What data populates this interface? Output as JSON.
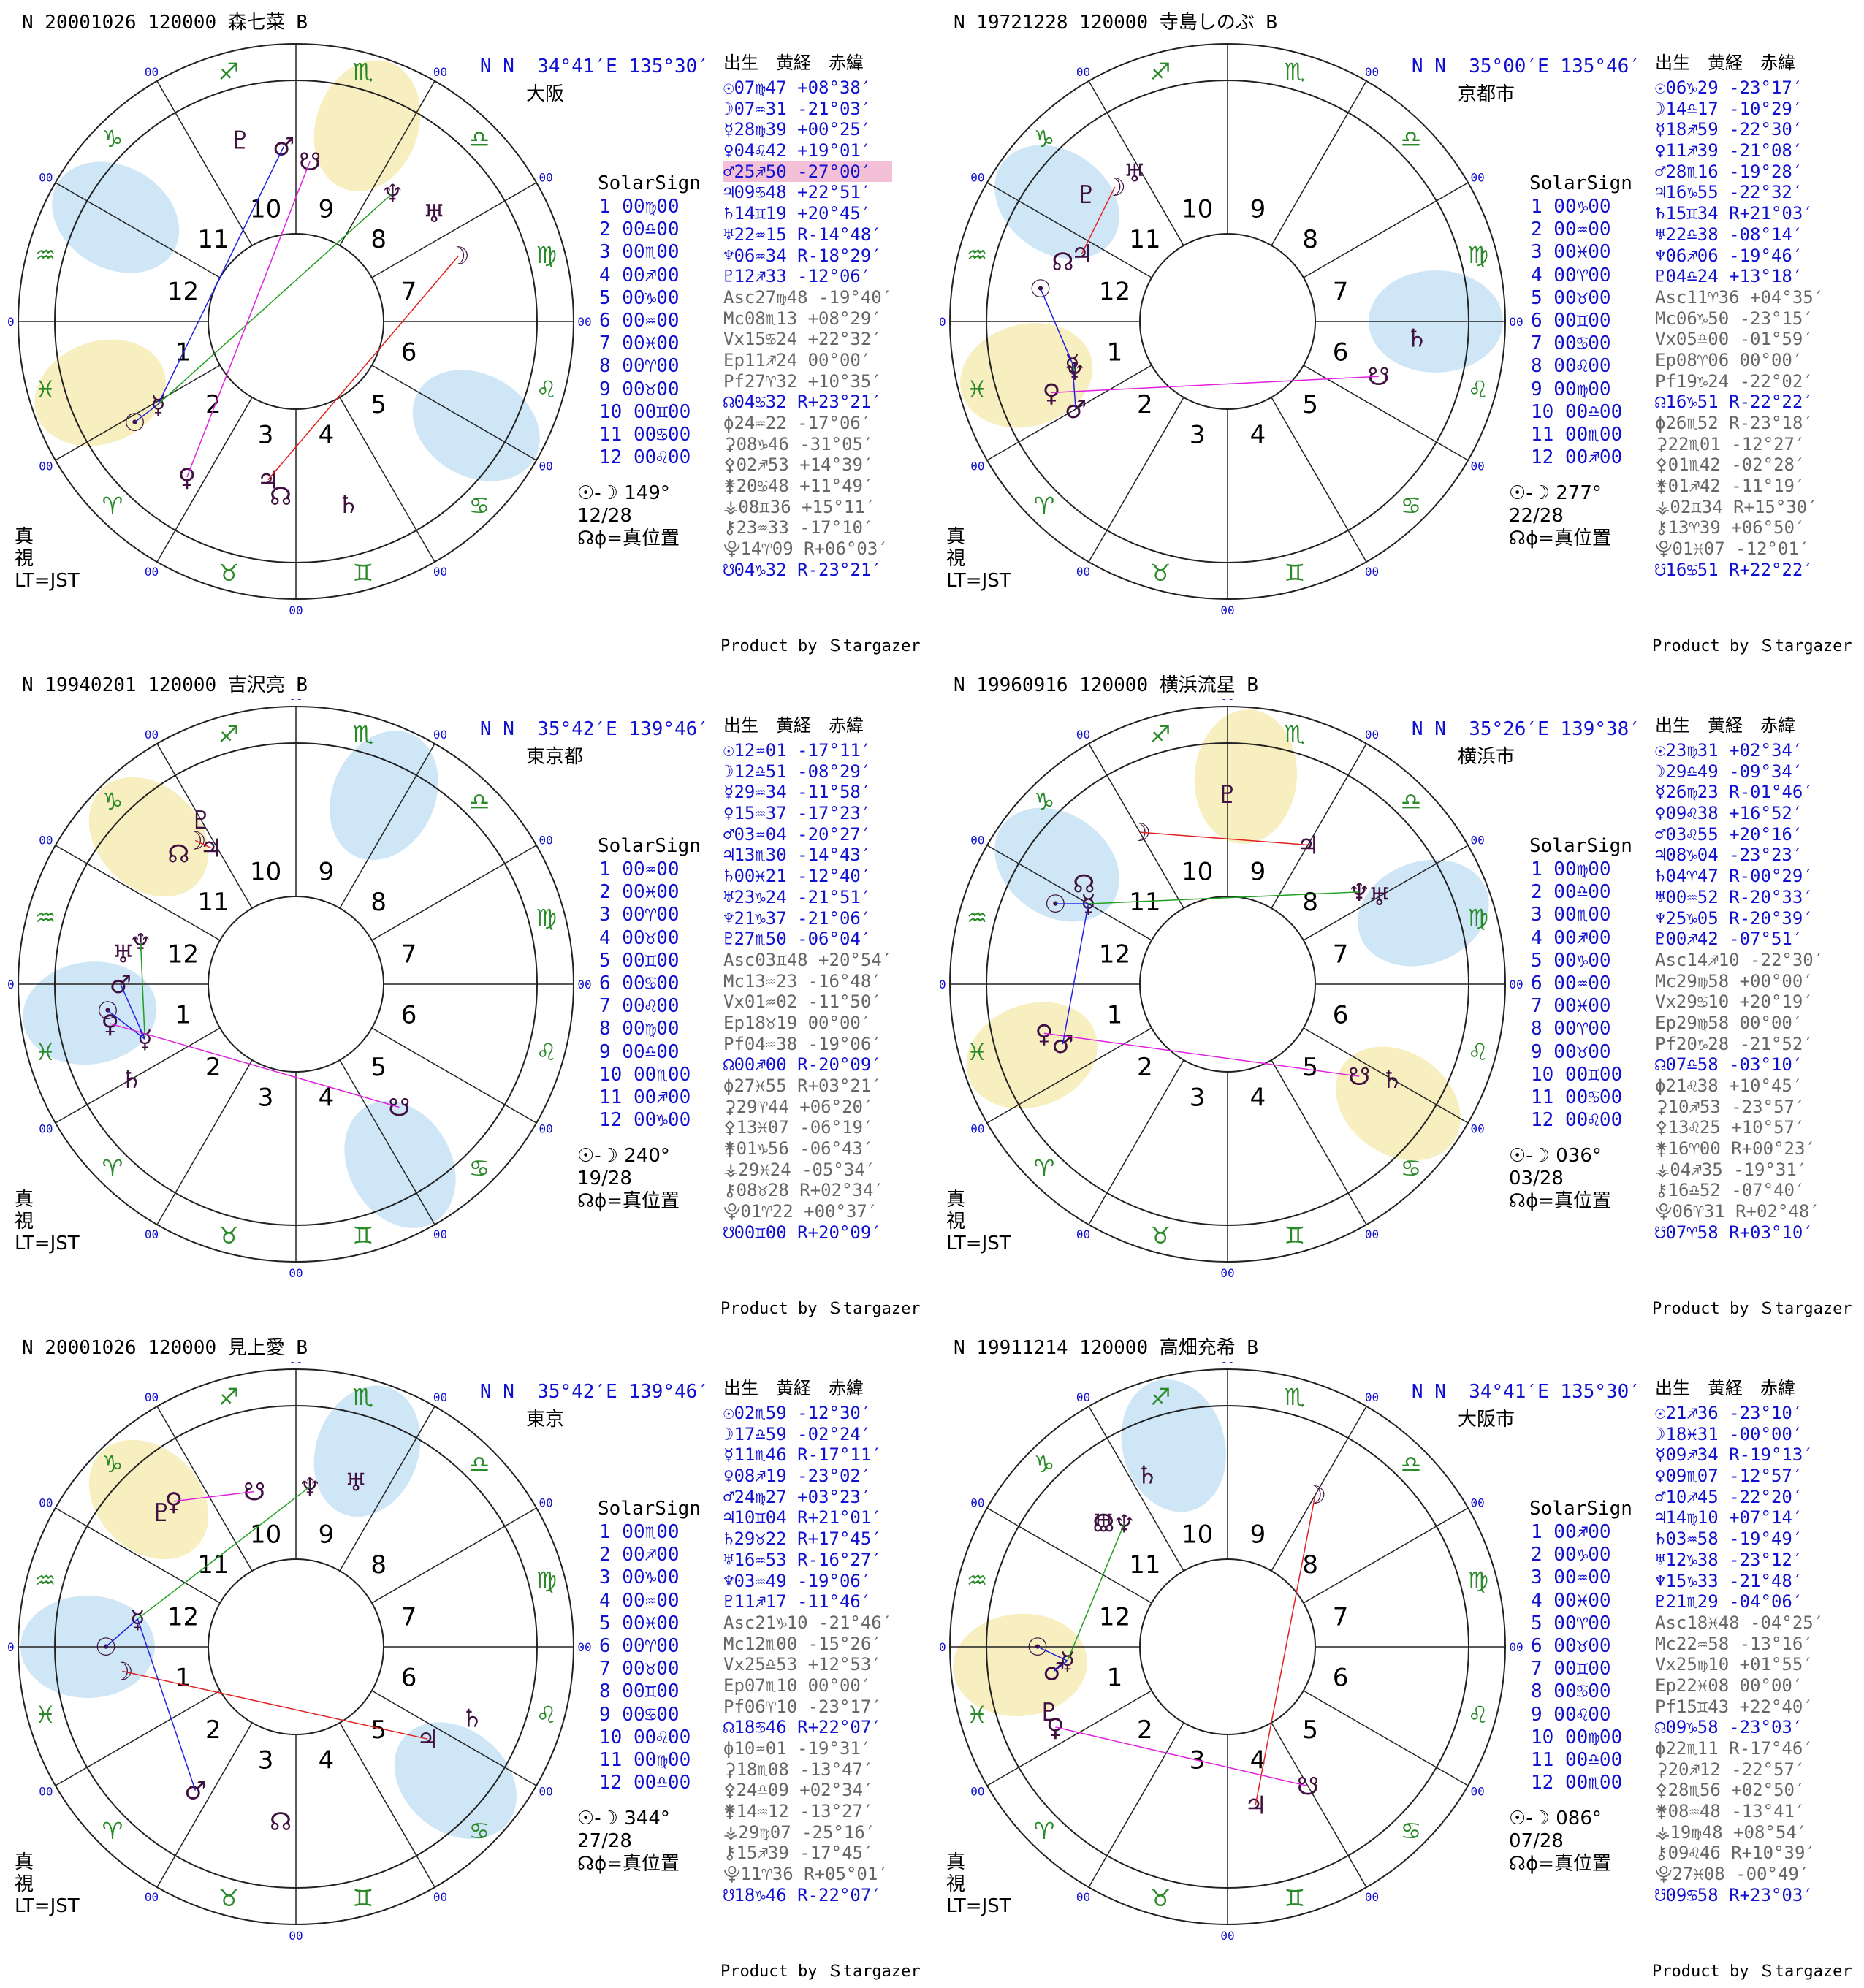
{
  "labels": {
    "header": "出生　黄経　赤緯",
    "solar": "SolarSign",
    "product": "Product by Ｓtargazer",
    "true": "真\n視\nLT=JST",
    "nodes": "☊ϕ=真位置"
  },
  "signs_order": [
    "♈",
    "♉",
    "♊",
    "♋",
    "♌",
    "♍",
    "♎",
    "♏",
    "♐",
    "♑",
    "♒",
    "♓"
  ],
  "panels": [
    {
      "title": "N 20001026 120000 森七菜 B",
      "loc": "N N  34°41′E 135°30′",
      "city": "大阪",
      "asc_deg": 147.7,
      "aspect_line1": "☉-☽ 149°",
      "aspect_line2": "12/28",
      "houses": [
        "1 00♍00",
        "2 00♎00",
        "3 00♏00",
        "4 00♐00",
        "5 00♑00",
        "6 00♒00",
        "7 00♓00",
        "8 00♈00",
        "9 00♉00",
        "10 00♊00",
        "11 00♋00",
        "12 00♌00"
      ],
      "rows": [
        "☉07♍47 +08°38′",
        "☽07♒31 -21°03′",
        "☿28♍39 +00°25′",
        "♀04♌42 +19°01′",
        "♂25♐50 -27°00′",
        "♃09♋48 +22°51′",
        "♄14♊19 +20°45′",
        "♅22♒15 R-14°48′",
        "♆06♒34 R-18°29′",
        "♇12♐33 -12°06′",
        "Asc27♍48 -19°40′",
        "Mc08♏13 +08°29′",
        "Vx15♋24 +22°32′",
        "Ep11♐24 00°00′",
        "Pf27♈32 +10°35′",
        "☊04♋32 R+23°21′",
        "ϕ24♒22 -17°06′",
        "⚳08♑46 -31°05′",
        "⚴02♐53 +14°39′",
        "⚵20♋48 +11°49′",
        "⚶08♊36 +15°11′",
        "⚷23♒33 -17°10′",
        "⯓14♈09 R+06°03′",
        "☋04♑32 R-23°21′"
      ],
      "hl_row": 4,
      "bubbles": [
        {
          "a": 210,
          "c": "#cfe6f7"
        },
        {
          "a": 30,
          "c": "#cfe6f7"
        },
        {
          "a": 160,
          "c": "#f7efc0"
        },
        {
          "a": 290,
          "c": "#f7efc0"
        }
      ],
      "planets": [
        [
          "☉",
          148
        ],
        [
          "☽",
          338
        ],
        [
          "☿",
          149
        ],
        [
          "♀",
          125
        ],
        [
          "♂",
          266
        ],
        [
          "♃",
          100
        ],
        [
          "♄",
          74
        ],
        [
          "♅",
          322
        ],
        [
          "♆",
          307
        ],
        [
          "♇",
          253
        ],
        [
          "☊",
          95
        ],
        [
          "☋",
          275
        ]
      ]
    },
    {
      "title": "N 19721228 120000 寺島しのぶ B",
      "loc": "N N  35°00′E 135°46′",
      "city": "京都市",
      "asc_deg": -150,
      "aspect_line1": "☉-☽ 277°",
      "aspect_line2": "22/28",
      "houses": [
        "1 00♑00",
        "2 00♒00",
        "3 00♓00",
        "4 00♈00",
        "5 00♉00",
        "6 00♊00",
        "7 00♋00",
        "8 00♌00",
        "9 00♍00",
        "10 00♎00",
        "11 00♏00",
        "12 00♐00"
      ],
      "rows": [
        "☉06♑29 -23°17′",
        "☽14♎17 -10°29′",
        "☿18♐59 -22°30′",
        "♀11♐39 -21°08′",
        "♂28♏16 -19°28′",
        "♃16♑55 -22°32′",
        "♄15♊34 R+21°03′",
        "♅22♎38 -08°14′",
        "♆06♐06 -19°46′",
        "♇04♎24 +13°18′",
        "Asc11♈36 +04°35′",
        "Mc06♑50 -23°15′",
        "Vx05♎00 -01°59′",
        "Ep08♈06 00°00′",
        "Pf19♑24 -22°02′",
        "☊16♑51 R-22°22′",
        "ϕ26♏52 R-23°18′",
        "⚳22♏01 -12°27′",
        "⚴01♏42 -02°28′",
        "⚵01♐42 -11°19′",
        "⚶02♊34 R+15°30′",
        "⚷13♈39 +06°50′",
        "⯓01♓07 -12°01′",
        "☋16♋51 R+22°22′"
      ],
      "hl_row": -1,
      "bubbles": [
        {
          "a": 215,
          "c": "#cfe6f7"
        },
        {
          "a": 0,
          "c": "#cfe6f7"
        },
        {
          "a": 165,
          "c": "#f7efc0"
        }
      ],
      "planets": [
        [
          "☉",
          190
        ],
        [
          "☽",
          230
        ],
        [
          "☿",
          165
        ],
        [
          "♀",
          158
        ],
        [
          "♂",
          150
        ],
        [
          "♃",
          205
        ],
        [
          "♄",
          5
        ],
        [
          "♅",
          238
        ],
        [
          "♆",
          162
        ],
        [
          "♇",
          222
        ],
        [
          "☊",
          200
        ],
        [
          "☋",
          20
        ]
      ]
    },
    {
      "title": "N 19940201 120000 吉沢亮 B",
      "loc": "N N  35°42′E 139°46′",
      "city": "東京都",
      "asc_deg": -150,
      "aspect_line1": "☉-☽ 240°",
      "aspect_line2": "19/28",
      "houses": [
        "1 00♒00",
        "2 00♓00",
        "3 00♈00",
        "4 00♉00",
        "5 00♊00",
        "6 00♋00",
        "7 00♌00",
        "8 00♍00",
        "9 00♎00",
        "10 00♏00",
        "11 00♐00",
        "12 00♑00"
      ],
      "rows": [
        "☉12♒01 -17°11′",
        "☽12♎51 -08°29′",
        "☿29♒34 -11°58′",
        "♀15♒37 -17°23′",
        "♂03♒04 -20°27′",
        "♃13♏30 -14°43′",
        "♄00♓21 -12°40′",
        "♅23♑24 -21°51′",
        "♆21♑37 -21°06′",
        "♇27♏50 -06°04′",
        "Asc03♊48 +20°54′",
        "Mc13♒23 -16°48′",
        "Vx01♒02 -11°50′",
        "Ep18♉19 00°00′",
        "Pf04♒38 -19°06′",
        "☊00♐00 R-20°09′",
        "ϕ27♓55 R+03°21′",
        "⚳29♈44 +06°20′",
        "⚴13♓07 -06°19′",
        "⚵01♑56 -06°43′",
        "⚶29♓24 -05°34′",
        "⚷08♉28 R+02°34′",
        "⯓01♈22 +00°37′",
        "☋00♊00 R+20°09′"
      ],
      "hl_row": -1,
      "bubbles": [
        {
          "a": 225,
          "c": "#f7efc0"
        },
        {
          "a": 295,
          "c": "#cfe6f7"
        },
        {
          "a": 60,
          "c": "#cfe6f7"
        },
        {
          "a": 172,
          "c": "#cfe6f7"
        }
      ],
      "planets": [
        [
          "☉",
          172
        ],
        [
          "☽",
          235
        ],
        [
          "☿",
          160
        ],
        [
          "♀",
          168
        ],
        [
          "♂",
          180
        ],
        [
          "♃",
          238
        ],
        [
          "♄",
          150
        ],
        [
          "♅",
          190
        ],
        [
          "♆",
          195
        ],
        [
          "♇",
          240
        ],
        [
          "☊",
          228
        ],
        [
          "☋",
          50
        ]
      ]
    },
    {
      "title": "N 19960916 120000 横浜流星 B",
      "loc": "N N  35°26′E 139°38′",
      "city": "横浜市",
      "asc_deg": -150,
      "aspect_line1": "☉-☽ 036°",
      "aspect_line2": "03/28",
      "houses": [
        "1 00♍00",
        "2 00♎00",
        "3 00♏00",
        "4 00♐00",
        "5 00♑00",
        "6 00♒00",
        "7 00♓00",
        "8 00♈00",
        "9 00♉00",
        "10 00♊00",
        "11 00♋00",
        "12 00♌00"
      ],
      "rows": [
        "☉23♍31 +02°34′",
        "☽29♎49 -09°34′",
        "☿26♍23 R-01°46′",
        "♀09♌38 +16°52′",
        "♂03♌55 +20°16′",
        "♃08♑04 -23°23′",
        "♄04♈47 R-00°29′",
        "♅00♒52 R-20°33′",
        "♆25♑05 R-20°39′",
        "♇00♐42 -07°51′",
        "Asc14♐10 -22°30′",
        "Mc29♍58 +00°00′",
        "Vx29♋10 +20°19′",
        "Ep29♍58 00°00′",
        "Pf20♑28 -21°52′",
        "☊07♎58 -03°10′",
        "ϕ21♌38 +10°45′",
        "⚳10♐53 -23°57′",
        "⚴13♌25 +10°57′",
        "⚵16♈00 R+00°23′",
        "⚶04♐35 -19°31′",
        "⚷16♎52 -07°40′",
        "⯓06♈31 R+02°48′",
        "☋07♈58 R+03°10′"
      ],
      "hl_row": -1,
      "bubbles": [
        {
          "a": 160,
          "c": "#f7efc0"
        },
        {
          "a": 35,
          "c": "#f7efc0"
        },
        {
          "a": 215,
          "c": "#cfe6f7"
        },
        {
          "a": 275,
          "c": "#f7efc0"
        },
        {
          "a": 340,
          "c": "#cfe6f7"
        }
      ],
      "planets": [
        [
          "☉",
          205
        ],
        [
          "☽",
          240
        ],
        [
          "☿",
          210
        ],
        [
          "♀",
          165
        ],
        [
          "♂",
          160
        ],
        [
          "♃",
          300
        ],
        [
          "♄",
          30
        ],
        [
          "♅",
          330
        ],
        [
          "♆",
          325
        ],
        [
          "♇",
          270
        ],
        [
          "☊",
          215
        ],
        [
          "☋",
          35
        ]
      ]
    },
    {
      "title": "N 20001026 120000 見上愛 B",
      "loc": "N N  35°42′E 139°46′",
      "city": "東京",
      "asc_deg": -150,
      "aspect_line1": "☉-☽ 344°",
      "aspect_line2": "27/28",
      "houses": [
        "1 00♏00",
        "2 00♐00",
        "3 00♑00",
        "4 00♒00",
        "5 00♓00",
        "6 00♈00",
        "7 00♉00",
        "8 00♊00",
        "9 00♋00",
        "10 00♌00",
        "11 00♍00",
        "12 00♎00"
      ],
      "rows": [
        "☉02♏59 -12°30′",
        "☽17♎59 -02°24′",
        "☿11♏46 R-17°11′",
        "♀08♐19 -23°02′",
        "♂24♍27 +03°23′",
        "♃10♊04 R+21°01′",
        "♄29♉22 R+17°45′",
        "♅16♒53 R-16°27′",
        "♆03♒49 -19°06′",
        "♇11♐17 -11°46′",
        "Asc21♑10 -21°46′",
        "Mc12♏00 -15°26′",
        "Vx25♎53 +12°53′",
        "Ep07♏10 00°00′",
        "Pf06♈10 -23°17′",
        "☊18♋46 R+22°07′",
        "ϕ10♒01 -19°31′",
        "⚳18♏08 -13°47′",
        "⚴24♎09 +02°34′",
        "⚵14♒12 -13°27′",
        "⚶29♍07 -25°16′",
        "⚷15♐39 -17°45′",
        "⯓11♈36 R+05°01′",
        "☋18♑46 R-22°07′"
      ],
      "hl_row": -1,
      "bubbles": [
        {
          "a": 40,
          "c": "#cfe6f7"
        },
        {
          "a": 180,
          "c": "#cfe6f7"
        },
        {
          "a": 225,
          "c": "#f7efc0"
        },
        {
          "a": 290,
          "c": "#cfe6f7"
        }
      ],
      "planets": [
        [
          "☉",
          180
        ],
        [
          "☽",
          172
        ],
        [
          "☿",
          190
        ],
        [
          "♀",
          230
        ],
        [
          "♂",
          125
        ],
        [
          "♃",
          35
        ],
        [
          "♄",
          22
        ],
        [
          "♅",
          290
        ],
        [
          "♆",
          275
        ],
        [
          "♇",
          225
        ],
        [
          "☊",
          95
        ],
        [
          "☋",
          255
        ]
      ]
    },
    {
      "title": "N 19911214 120000 高畑充希 B",
      "loc": "N N  34°41′E 135°30′",
      "city": "大阪市",
      "asc_deg": -150,
      "aspect_line1": "☉-☽ 086°",
      "aspect_line2": "07/28",
      "houses": [
        "1 00♐00",
        "2 00♑00",
        "3 00♒00",
        "4 00♓00",
        "5 00♈00",
        "6 00♉00",
        "7 00♊00",
        "8 00♋00",
        "9 00♌00",
        "10 00♍00",
        "11 00♎00",
        "12 00♏00"
      ],
      "rows": [
        "☉21♐36 -23°10′",
        "☽18♓31 -00°00′",
        "☿09♐34 R-19°13′",
        "♀09♏07 -12°57′",
        "♂10♐45 -22°20′",
        "♃14♍10 +07°14′",
        "♄03♒58 -19°49′",
        "♅12♑38 -23°12′",
        "♆15♑33 -21°48′",
        "♇21♏29 -04°06′",
        "Asc18♓48 -04°25′",
        "Mc22♒58 -13°16′",
        "Vx25♍10 +01°55′",
        "Ep22♓08 00°00′",
        "Pf15♊43 +22°40′",
        "☊09♑58 -23°03′",
        "ϕ22♏11 R-17°46′",
        "⚳20♐12 -22°57′",
        "⚴28♏56 +02°50′",
        "⚵08♒48 -13°41′",
        "⚶19♍48 +08°54′",
        "⚷09♌46 R+10°39′",
        "⯓27♓08 -00°49′",
        "☋09♋58 R+23°03′"
      ],
      "hl_row": -1,
      "bubbles": [
        {
          "a": 175,
          "c": "#f7efc0"
        },
        {
          "a": 255,
          "c": "#cfe6f7"
        }
      ],
      "planets": [
        [
          "☉",
          180
        ],
        [
          "☽",
          300
        ],
        [
          "☿",
          175
        ],
        [
          "♀",
          155
        ],
        [
          "♂",
          172
        ],
        [
          "♃",
          80
        ],
        [
          "♄",
          245
        ],
        [
          "♅",
          225
        ],
        [
          "♆",
          230
        ],
        [
          "♇",
          160
        ],
        [
          "☊",
          225
        ],
        [
          "☋",
          60
        ]
      ]
    }
  ]
}
